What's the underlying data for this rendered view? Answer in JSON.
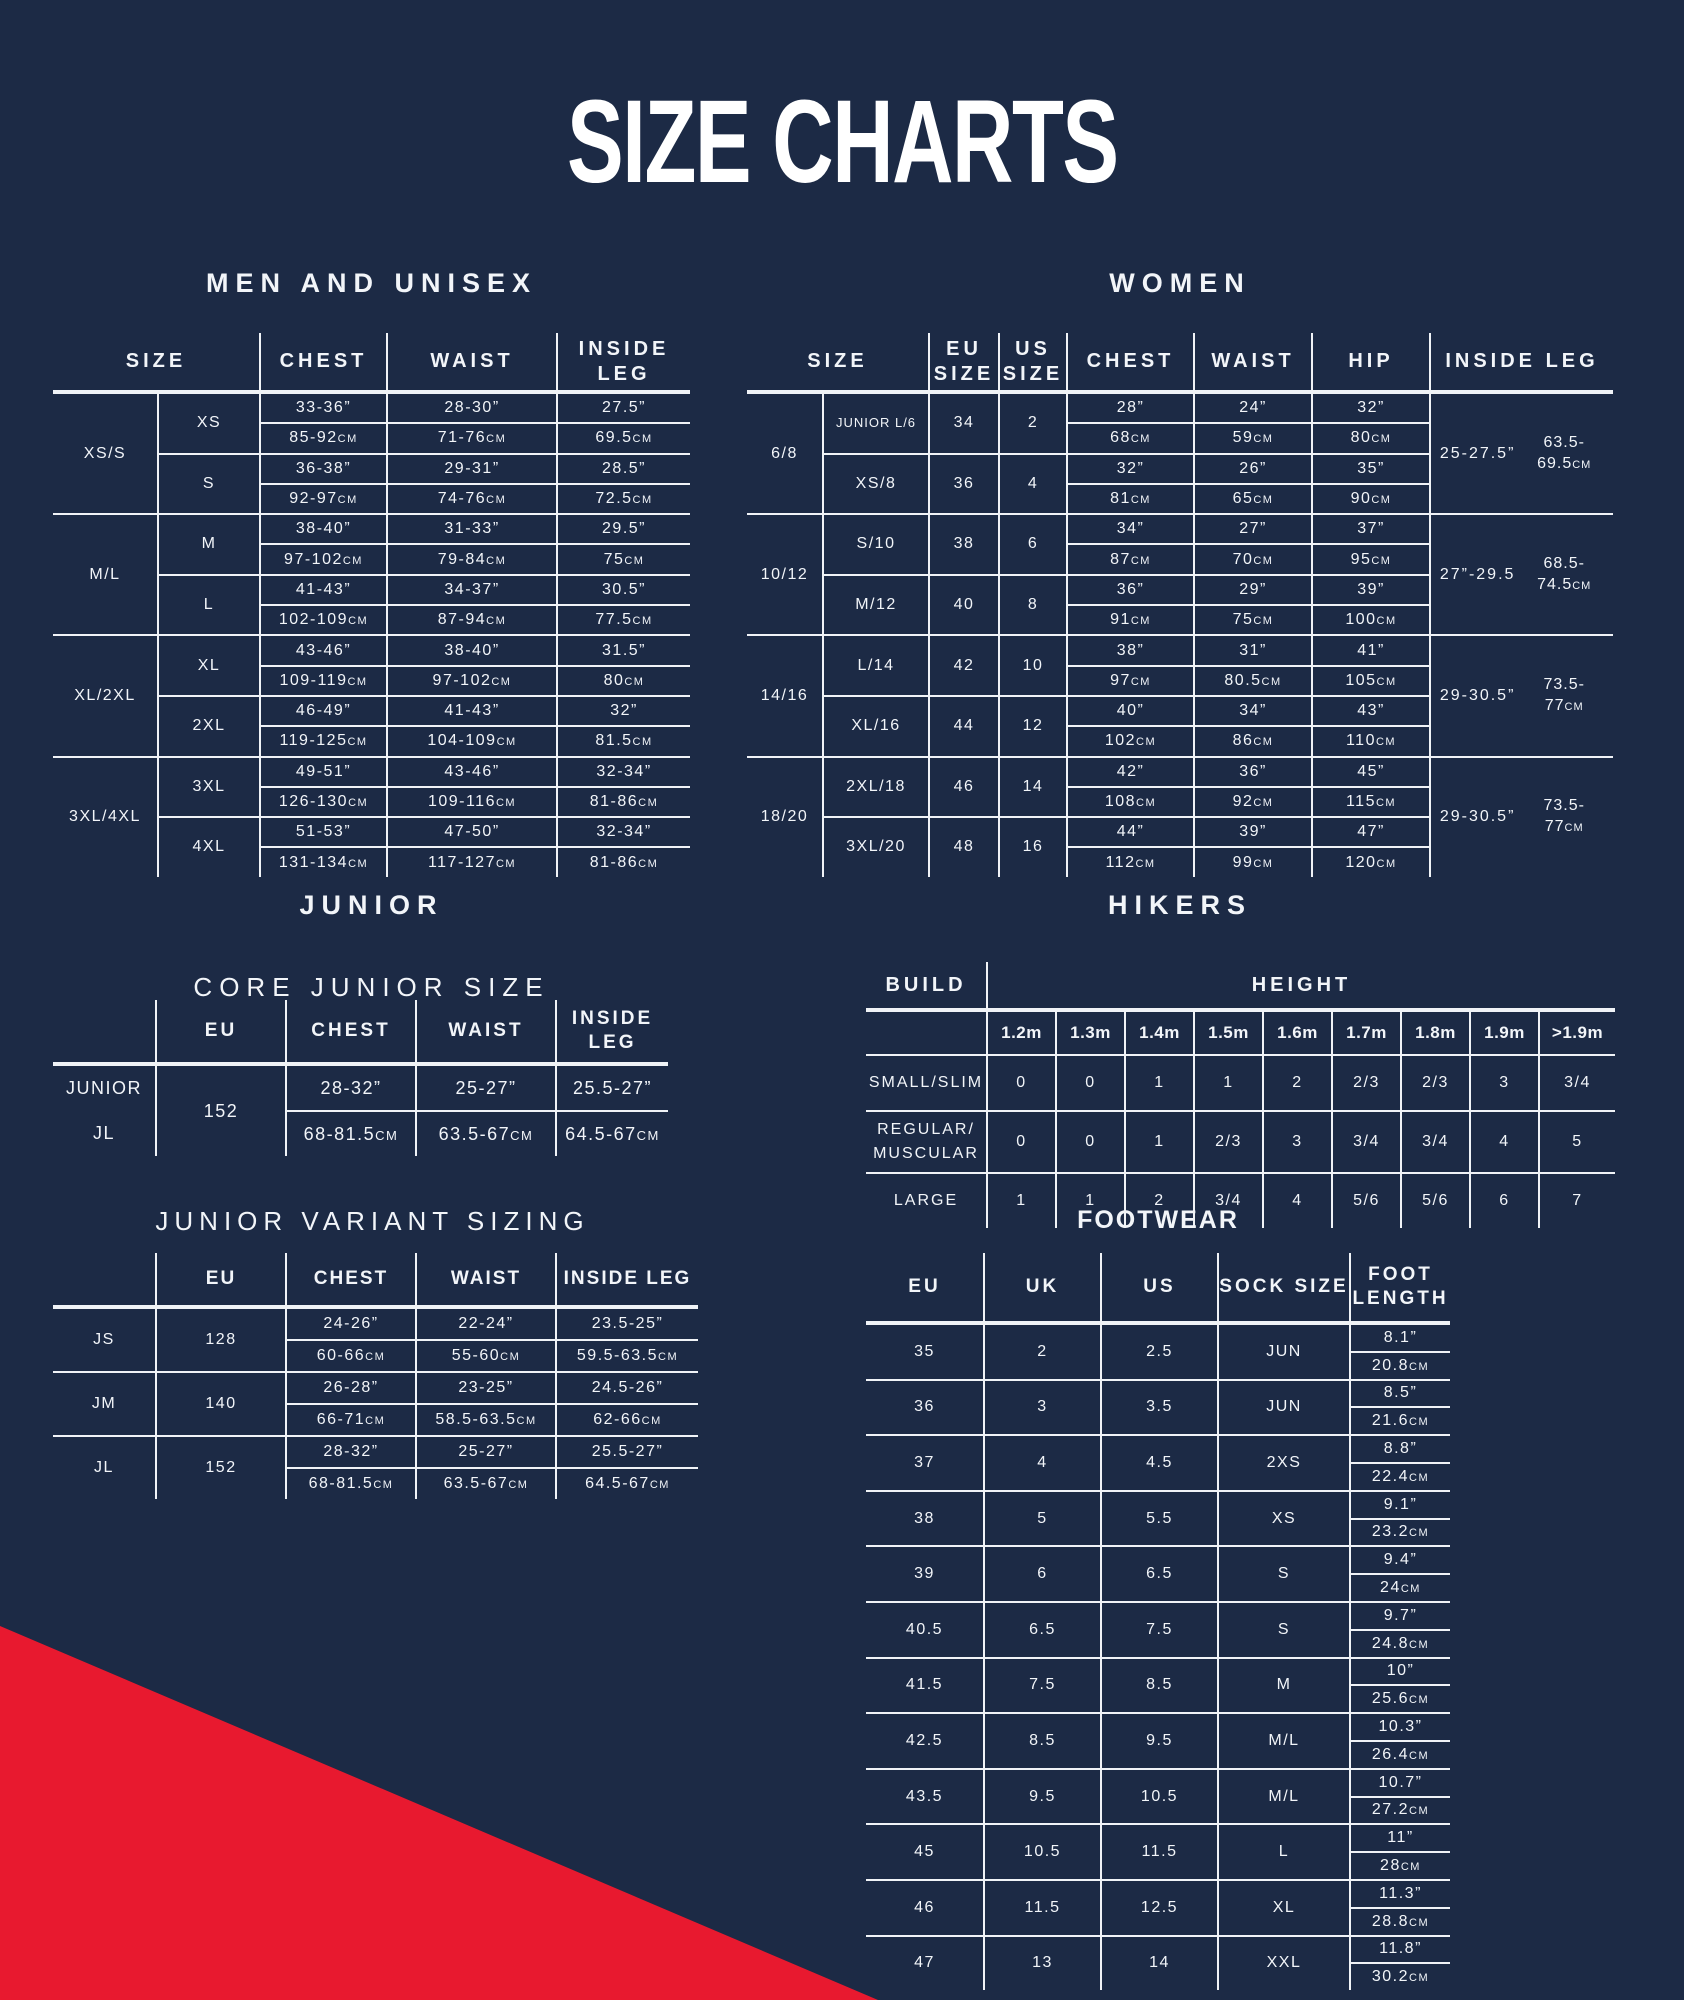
{
  "title": "SIZE CHARTS",
  "colors": {
    "background": "#1c2a45",
    "line": "#f0f3f7",
    "text": "#f2f5f9",
    "accent_red": "#e8192f"
  },
  "men": {
    "heading": "MEN AND UNISEX",
    "headers": [
      "SIZE",
      "CHEST",
      "WAIST",
      "INSIDE LEG"
    ],
    "groups": [
      {
        "label": "XS/S",
        "subs": [
          {
            "label": "XS",
            "chest": [
              "33-36”",
              "85-92cm"
            ],
            "waist": [
              "28-30”",
              "71-76cm"
            ],
            "leg": [
              "27.5”",
              "69.5cm"
            ]
          },
          {
            "label": "S",
            "chest": [
              "36-38”",
              "92-97cm"
            ],
            "waist": [
              "29-31”",
              "74-76cm"
            ],
            "leg": [
              "28.5”",
              "72.5cm"
            ]
          }
        ]
      },
      {
        "label": "M/L",
        "subs": [
          {
            "label": "M",
            "chest": [
              "38-40”",
              "97-102cm"
            ],
            "waist": [
              "31-33”",
              "79-84cm"
            ],
            "leg": [
              "29.5”",
              "75cm"
            ]
          },
          {
            "label": "L",
            "chest": [
              "41-43”",
              "102-109cm"
            ],
            "waist": [
              "34-37”",
              "87-94cm"
            ],
            "leg": [
              "30.5”",
              "77.5cm"
            ]
          }
        ]
      },
      {
        "label": "XL/2XL",
        "subs": [
          {
            "label": "XL",
            "chest": [
              "43-46”",
              "109-119cm"
            ],
            "waist": [
              "38-40”",
              "97-102cm"
            ],
            "leg": [
              "31.5”",
              "80cm"
            ]
          },
          {
            "label": "2XL",
            "chest": [
              "46-49”",
              "119-125cm"
            ],
            "waist": [
              "41-43”",
              "104-109cm"
            ],
            "leg": [
              "32”",
              "81.5cm"
            ]
          }
        ]
      },
      {
        "label": "3XL/4XL",
        "subs": [
          {
            "label": "3XL",
            "chest": [
              "49-51”",
              "126-130cm"
            ],
            "waist": [
              "43-46”",
              "109-116cm"
            ],
            "leg": [
              "32-34”",
              "81-86cm"
            ]
          },
          {
            "label": "4XL",
            "chest": [
              "51-53”",
              "131-134cm"
            ],
            "waist": [
              "47-50”",
              "117-127cm"
            ],
            "leg": [
              "32-34”",
              "81-86cm"
            ]
          }
        ]
      }
    ]
  },
  "women": {
    "heading": "WOMEN",
    "headers": [
      "SIZE",
      "EU SIZE",
      "US SIZE",
      "CHEST",
      "WAIST",
      "HIP",
      "INSIDE LEG"
    ],
    "groups": [
      {
        "label": "6/8",
        "leg": [
          "25-27.5”",
          "63.5-69.5cm"
        ],
        "subs": [
          {
            "label": "JUNIOR L/6",
            "small": true,
            "eu": "34",
            "us": "2",
            "chest": [
              "28”",
              "68cm"
            ],
            "waist": [
              "24”",
              "59cm"
            ],
            "hip": [
              "32”",
              "80cm"
            ]
          },
          {
            "label": "XS/8",
            "eu": "36",
            "us": "4",
            "chest": [
              "32”",
              "81cm"
            ],
            "waist": [
              "26”",
              "65cm"
            ],
            "hip": [
              "35”",
              "90cm"
            ]
          }
        ]
      },
      {
        "label": "10/12",
        "leg": [
          "27”-29.5",
          "68.5-74.5cm"
        ],
        "subs": [
          {
            "label": "S/10",
            "eu": "38",
            "us": "6",
            "chest": [
              "34”",
              "87cm"
            ],
            "waist": [
              "27”",
              "70cm"
            ],
            "hip": [
              "37”",
              "95cm"
            ]
          },
          {
            "label": "M/12",
            "eu": "40",
            "us": "8",
            "chest": [
              "36”",
              "91cm"
            ],
            "waist": [
              "29”",
              "75cm"
            ],
            "hip": [
              "39”",
              "100cm"
            ]
          }
        ]
      },
      {
        "label": "14/16",
        "leg": [
          "29-30.5”",
          "73.5-77cm"
        ],
        "subs": [
          {
            "label": "L/14",
            "eu": "42",
            "us": "10",
            "chest": [
              "38”",
              "97cm"
            ],
            "waist": [
              "31”",
              "80.5cm"
            ],
            "hip": [
              "41”",
              "105cm"
            ]
          },
          {
            "label": "XL/16",
            "eu": "44",
            "us": "12",
            "chest": [
              "40”",
              "102cm"
            ],
            "waist": [
              "34”",
              "86cm"
            ],
            "hip": [
              "43”",
              "110cm"
            ]
          }
        ]
      },
      {
        "label": "18/20",
        "leg": [
          "29-30.5”",
          "73.5-77cm"
        ],
        "subs": [
          {
            "label": "2XL/18",
            "eu": "46",
            "us": "14",
            "chest": [
              "42”",
              "108cm"
            ],
            "waist": [
              "36”",
              "92cm"
            ],
            "hip": [
              "45”",
              "115cm"
            ]
          },
          {
            "label": "3XL/20",
            "eu": "48",
            "us": "16",
            "chest": [
              "44”",
              "112cm"
            ],
            "waist": [
              "39”",
              "99cm"
            ],
            "hip": [
              "47”",
              "120cm"
            ]
          }
        ]
      }
    ]
  },
  "junior": {
    "heading": "JUNIOR",
    "subtitle": "CORE JUNIOR SIZE",
    "headers": [
      "EU",
      "CHEST",
      "WAIST",
      "INSIDE LEG"
    ],
    "rows": [
      {
        "labels": [
          "JUNIOR",
          "JL"
        ],
        "eu": "152",
        "chest": [
          "28-32”",
          "68-81.5cm"
        ],
        "waist": [
          "25-27”",
          "63.5-67cm"
        ],
        "leg": [
          "25.5-27”",
          "64.5-67cm"
        ]
      }
    ]
  },
  "hikers": {
    "heading": "HIKERS",
    "build_header": "BUILD",
    "height_header": "HEIGHT",
    "height_cols": [
      "1.2m",
      "1.3m",
      "1.4m",
      "1.5m",
      "1.6m",
      "1.7m",
      "1.8m",
      "1.9m",
      ">1.9m"
    ],
    "rows": [
      {
        "label": "SMALL/SLIM",
        "values": [
          "0",
          "0",
          "1",
          "1",
          "2",
          "2/3",
          "2/3",
          "3",
          "3/4"
        ]
      },
      {
        "label": "REGULAR/ MUSCULAR",
        "values": [
          "0",
          "0",
          "1",
          "2/3",
          "3",
          "3/4",
          "3/4",
          "4",
          "5"
        ]
      },
      {
        "label": "LARGE",
        "values": [
          "1",
          "1",
          "2",
          "3/4",
          "4",
          "5/6",
          "5/6",
          "6",
          "7"
        ]
      }
    ]
  },
  "variant": {
    "title": "JUNIOR VARIANT SIZING",
    "headers": [
      "EU",
      "CHEST",
      "WAIST",
      "INSIDE LEG"
    ],
    "rows": [
      {
        "label": "JS",
        "eu": "128",
        "chest": [
          "24-26”",
          "60-66cm"
        ],
        "waist": [
          "22-24”",
          "55-60cm"
        ],
        "leg": [
          "23.5-25”",
          "59.5-63.5cm"
        ]
      },
      {
        "label": "JM",
        "eu": "140",
        "chest": [
          "26-28”",
          "66-71cm"
        ],
        "waist": [
          "23-25”",
          "58.5-63.5cm"
        ],
        "leg": [
          "24.5-26”",
          "62-66cm"
        ]
      },
      {
        "label": "JL",
        "eu": "152",
        "chest": [
          "28-32”",
          "68-81.5cm"
        ],
        "waist": [
          "25-27”",
          "63.5-67cm"
        ],
        "leg": [
          "25.5-27”",
          "64.5-67cm"
        ]
      }
    ]
  },
  "footwear": {
    "heading": "FOOTWEAR",
    "headers": [
      "EU",
      "UK",
      "US",
      "SOCK SIZE",
      "FOOT LENGTH"
    ],
    "rows": [
      {
        "eu": "35",
        "uk": "2",
        "us": "2.5",
        "sock": "JUN",
        "foot": [
          "8.1”",
          "20.8cm"
        ]
      },
      {
        "eu": "36",
        "uk": "3",
        "us": "3.5",
        "sock": "JUN",
        "foot": [
          "8.5”",
          "21.6cm"
        ]
      },
      {
        "eu": "37",
        "uk": "4",
        "us": "4.5",
        "sock": "2XS",
        "foot": [
          "8.8”",
          "22.4cm"
        ]
      },
      {
        "eu": "38",
        "uk": "5",
        "us": "5.5",
        "sock": "XS",
        "foot": [
          "9.1”",
          "23.2cm"
        ]
      },
      {
        "eu": "39",
        "uk": "6",
        "us": "6.5",
        "sock": "S",
        "foot": [
          "9.4”",
          "24cm"
        ]
      },
      {
        "eu": "40.5",
        "uk": "6.5",
        "us": "7.5",
        "sock": "S",
        "foot": [
          "9.7”",
          "24.8cm"
        ]
      },
      {
        "eu": "41.5",
        "uk": "7.5",
        "us": "8.5",
        "sock": "M",
        "foot": [
          "10”",
          "25.6cm"
        ]
      },
      {
        "eu": "42.5",
        "uk": "8.5",
        "us": "9.5",
        "sock": "M/L",
        "foot": [
          "10.3”",
          "26.4cm"
        ]
      },
      {
        "eu": "43.5",
        "uk": "9.5",
        "us": "10.5",
        "sock": "M/L",
        "foot": [
          "10.7”",
          "27.2cm"
        ]
      },
      {
        "eu": "45",
        "uk": "10.5",
        "us": "11.5",
        "sock": "L",
        "foot": [
          "11”",
          "28cm"
        ]
      },
      {
        "eu": "46",
        "uk": "11.5",
        "us": "12.5",
        "sock": "XL",
        "foot": [
          "11.3”",
          "28.8cm"
        ]
      },
      {
        "eu": "47",
        "uk": "13",
        "us": "14",
        "sock": "XXL",
        "foot": [
          "11.8”",
          "30.2cm"
        ]
      }
    ]
  }
}
